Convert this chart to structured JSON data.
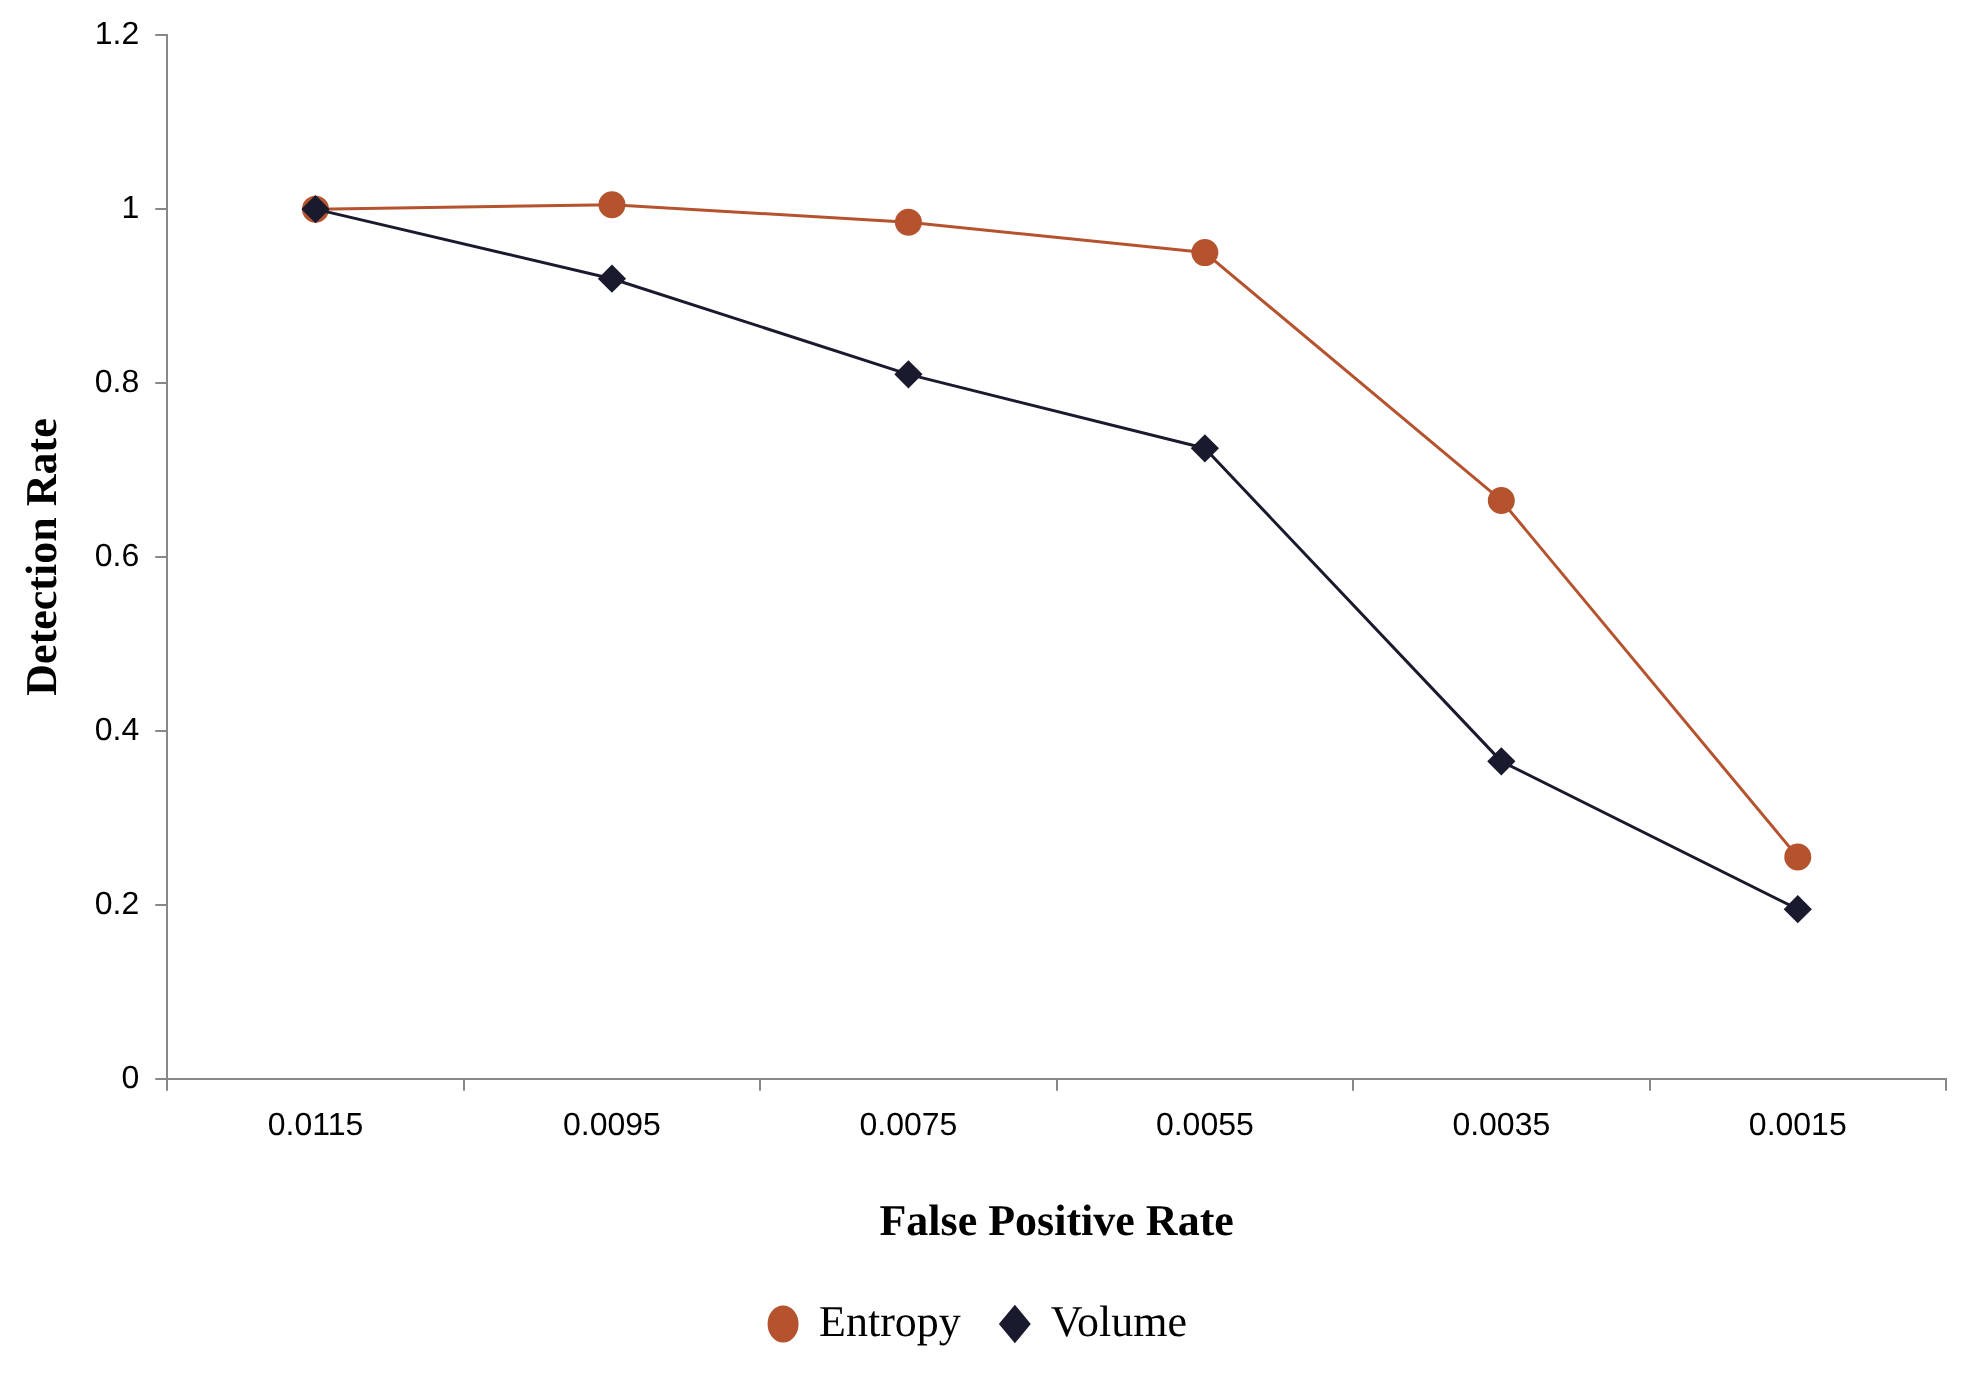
{
  "chart_data": {
    "type": "line",
    "xlabel": "False Positive Rate",
    "ylabel": "Detection Rate",
    "categories": [
      "0.0115",
      "0.0095",
      "0.0075",
      "0.0055",
      "0.0035",
      "0.0015"
    ],
    "series": [
      {
        "name": "Entropy",
        "color": "#b5532f",
        "marker": "circle",
        "values": [
          1.0,
          1.005,
          0.985,
          0.95,
          0.665,
          0.255
        ]
      },
      {
        "name": "Volume",
        "color": "#1a1a2e",
        "marker": "diamond",
        "values": [
          1.0,
          0.92,
          0.81,
          0.725,
          0.365,
          0.195
        ]
      }
    ],
    "ylim": [
      0,
      1.2
    ],
    "yticks": [
      0,
      0.2,
      0.4,
      0.6,
      0.8,
      1,
      1.2
    ],
    "legend": "bottom"
  }
}
